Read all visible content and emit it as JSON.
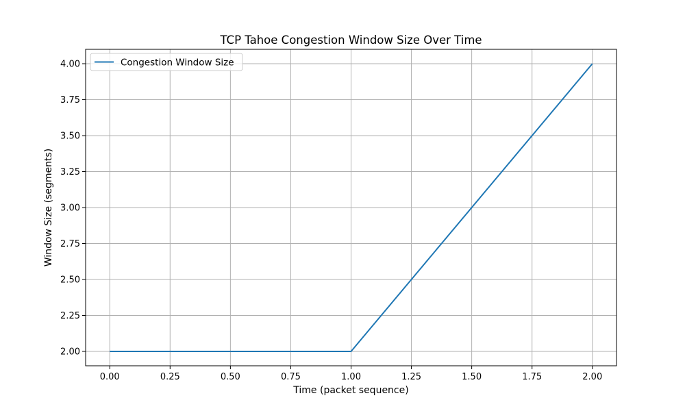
{
  "chart_data": {
    "type": "line",
    "title": "TCP Tahoe Congestion Window Size Over Time",
    "xlabel": "Time (packet sequence)",
    "ylabel": "Window Size (segments)",
    "xlim": [
      -0.1,
      2.1
    ],
    "ylim": [
      1.9,
      4.1
    ],
    "xticks": [
      "0.00",
      "0.25",
      "0.50",
      "0.75",
      "1.00",
      "1.25",
      "1.50",
      "1.75",
      "2.00"
    ],
    "yticks": [
      "2.00",
      "2.25",
      "2.50",
      "2.75",
      "3.00",
      "3.25",
      "3.50",
      "3.75",
      "4.00"
    ],
    "grid": true,
    "legend_position": "top-left",
    "series": [
      {
        "name": "Congestion Window Size",
        "color": "#1f77b4",
        "x": [
          0,
          1,
          2
        ],
        "y": [
          2,
          2,
          4
        ]
      }
    ]
  }
}
